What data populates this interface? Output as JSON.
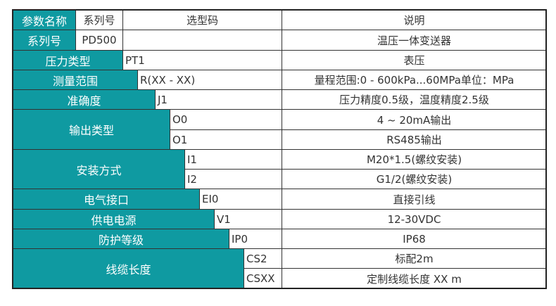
{
  "header": {
    "param_name": "参数名称",
    "series": "系列号",
    "code": "选型码",
    "desc": "说明"
  },
  "rows": [
    {
      "name": "系列号",
      "code": "PD500",
      "desc": "温压一体变送器"
    },
    {
      "name": "压力类型",
      "code": "PT1",
      "desc": "表压"
    },
    {
      "name": "测量范围",
      "code": "R(XX - XX)",
      "desc": "量程范围:0 - 600kPa...60MPa单位：MPa"
    },
    {
      "name": "准确度",
      "code": "J1",
      "desc": "压力精度0.5级，温度精度2.5级"
    },
    {
      "name": "输出类型",
      "options": [
        {
          "code": "O0",
          "desc": "4 ~ 20mA输出"
        },
        {
          "code": "O1",
          "desc": "RS485输出"
        }
      ]
    },
    {
      "name": "安装方式",
      "options": [
        {
          "code": "I1",
          "desc": "M20*1.5(螺纹安装)"
        },
        {
          "code": "I2",
          "desc": "G1/2(螺纹安装)"
        }
      ]
    },
    {
      "name": "电气接口",
      "code": "EI0",
      "desc": "直接引线"
    },
    {
      "name": "供电电源",
      "code": "V1",
      "desc": "12-30VDC"
    },
    {
      "name": "防护等级",
      "code": "IP0",
      "desc": "IP68"
    },
    {
      "name": "线缆长度",
      "options": [
        {
          "code": "CS2",
          "desc": "标配2m"
        },
        {
          "code": "CSXX",
          "desc": "定制线缆长度 XX m"
        }
      ]
    }
  ],
  "colors": {
    "accent": "#0f9aa1",
    "border": "#333333"
  }
}
